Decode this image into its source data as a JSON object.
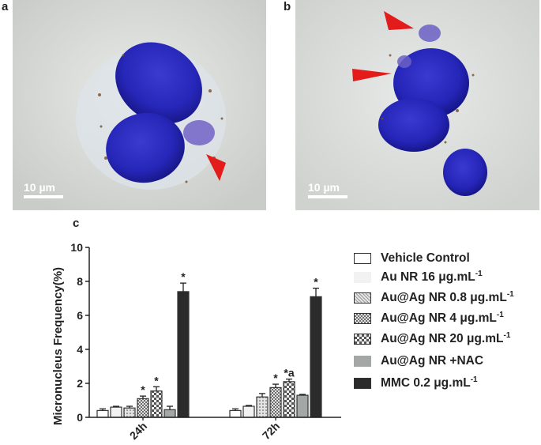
{
  "panels": {
    "a": {
      "letter": "a",
      "scale_label": "10 µm"
    },
    "b": {
      "letter": "b",
      "scale_label": "10 µm"
    },
    "c": {
      "letter": "c"
    }
  },
  "chart_data": {
    "type": "bar",
    "ylabel": "Micronucleus Frequency(%)",
    "xlabel": "",
    "ylim": [
      0,
      10
    ],
    "yticks": [
      0,
      2,
      4,
      6,
      8,
      10
    ],
    "categories": [
      "24h",
      "72h"
    ],
    "series": [
      {
        "name": "Vehicle Control",
        "unit": "",
        "values": [
          0.4,
          0.4
        ],
        "errors": [
          0.1,
          0.1
        ],
        "sig": [
          "",
          ""
        ],
        "color": "#ffffff",
        "pattern": "none"
      },
      {
        "name": "Au NR 16 ",
        "unit": "μg.mL",
        "sup": "-1",
        "values": [
          0.6,
          0.65
        ],
        "errors": [
          0.05,
          0.05
        ],
        "sig": [
          "",
          ""
        ],
        "color": "#f2f2f2",
        "pattern": "none"
      },
      {
        "name": "Au@Ag NR 0.8 ",
        "unit": "μg.mL",
        "sup": "-1",
        "values": [
          0.55,
          1.2
        ],
        "errors": [
          0.1,
          0.2
        ],
        "sig": [
          "",
          ""
        ],
        "color": "#d8d8d8",
        "pattern": "dots"
      },
      {
        "name": "Au@Ag NR 4 ",
        "unit": "μg.mL",
        "sup": "-1",
        "values": [
          1.1,
          1.75
        ],
        "errors": [
          0.15,
          0.2
        ],
        "sig": [
          "*",
          "*"
        ],
        "color": "#9a9a9a",
        "pattern": "cross"
      },
      {
        "name": "Au@Ag NR 20 ",
        "unit": "μg.mL",
        "sup": "-1",
        "values": [
          1.55,
          2.1
        ],
        "errors": [
          0.25,
          0.15
        ],
        "sig": [
          "*",
          "*a"
        ],
        "color": "#bdbdbd",
        "pattern": "checker"
      },
      {
        "name": "Au@Ag NR +NAC",
        "unit": "",
        "values": [
          0.45,
          1.3
        ],
        "errors": [
          0.2,
          0.05
        ],
        "sig": [
          "",
          ""
        ],
        "color": "#a3a8a6",
        "pattern": "none"
      },
      {
        "name": "MMC 0.2 ",
        "unit": "μg.mL",
        "sup": "-1",
        "values": [
          7.4,
          7.1
        ],
        "errors": [
          0.5,
          0.5
        ],
        "sig": [
          "*",
          "*"
        ],
        "color": "#2b2b2b",
        "pattern": "none"
      }
    ],
    "grid": false,
    "legend": "right"
  }
}
